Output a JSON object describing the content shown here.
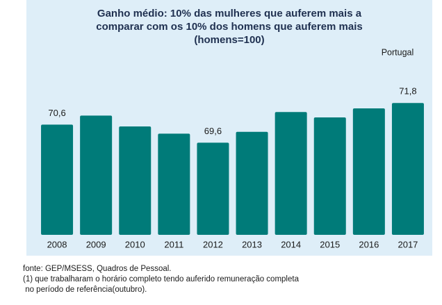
{
  "chart_data": {
    "type": "bar",
    "title": [
      "Ganho médio: 10% das mulheres que auferem mais a",
      "comparar com os 10% dos homens que auferem mais",
      "(homens=100)"
    ],
    "subtitle": "Portugal",
    "categories": [
      "2008",
      "2009",
      "2010",
      "2011",
      "2012",
      "2013",
      "2014",
      "2015",
      "2016",
      "2017"
    ],
    "values": [
      70.6,
      71.1,
      70.5,
      70.1,
      69.6,
      70.2,
      71.3,
      71.0,
      71.5,
      71.8
    ],
    "value_labels": [
      "70,6",
      null,
      null,
      null,
      "69,6",
      null,
      null,
      null,
      null,
      "71,8"
    ],
    "color": "#007b79",
    "ylim": [
      64.5,
      73
    ],
    "notes": [
      "fonte: GEP/MSESS, Quadros de Pessoal.",
      "(1) que trabalharam o horário completo tendo auferido remuneração completa",
      " no período de referência(outubro)."
    ]
  }
}
